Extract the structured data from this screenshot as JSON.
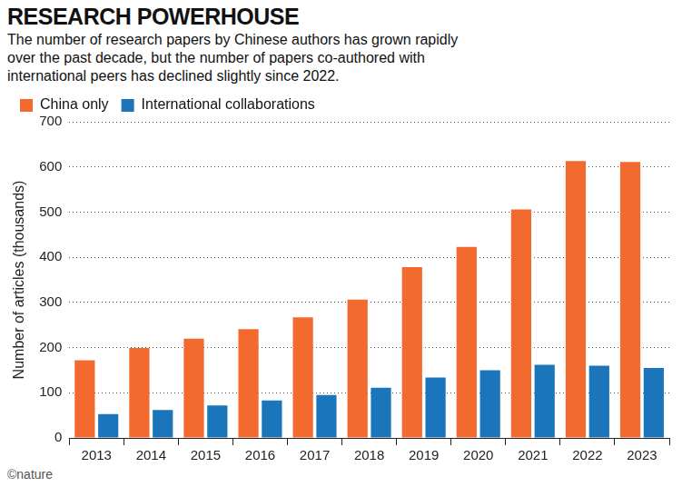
{
  "chart_data": {
    "type": "bar",
    "title": "RESEARCH POWERHOUSE",
    "subtitle": "The number of research papers by Chinese authors has grown rapidly over the past decade, but the number of papers co-authored with international peers has declined slightly since 2022.",
    "y_label": "Number of articles (thousands)",
    "annotations": [
      "©nature"
    ],
    "categories": [
      "2013",
      "2014",
      "2015",
      "2016",
      "2017",
      "2018",
      "2019",
      "2020",
      "2021",
      "2022",
      "2023"
    ],
    "series": [
      {
        "name": "China only",
        "color": "#f26a2e",
        "values": [
          172,
          199,
          220,
          241,
          267,
          306,
          378,
          423,
          506,
          613,
          611
        ]
      },
      {
        "name": "International collaborations",
        "color": "#1a75bb",
        "values": [
          53,
          62,
          72,
          83,
          95,
          111,
          134,
          150,
          162,
          160,
          155
        ]
      }
    ],
    "ylim": [
      0,
      700
    ],
    "yticks": [
      0,
      100,
      200,
      300,
      400,
      500,
      600,
      700
    ],
    "grid": true,
    "legend": "top-left"
  }
}
